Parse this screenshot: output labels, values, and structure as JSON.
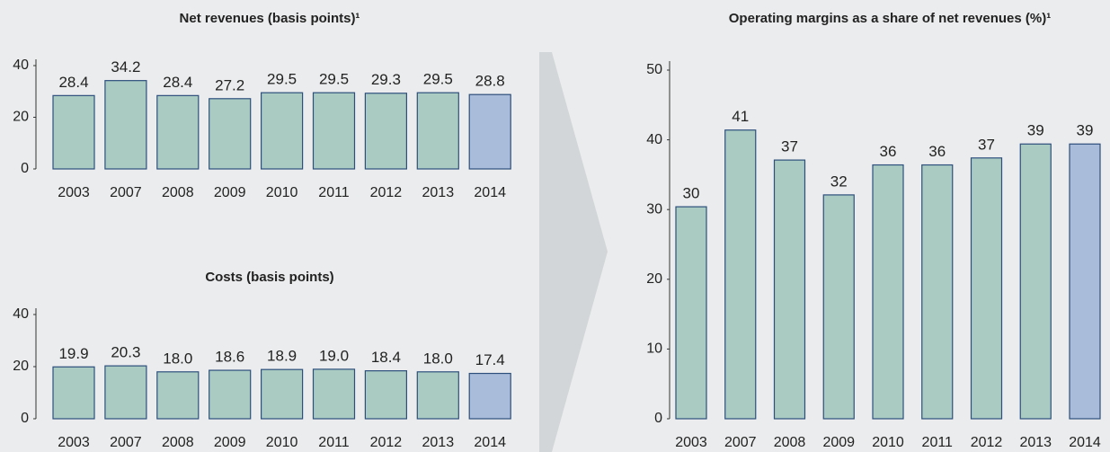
{
  "chart_data": [
    {
      "type": "bar",
      "title": "Net revenues (basis points)¹",
      "categories": [
        "2003",
        "2007",
        "2008",
        "2009",
        "2010",
        "2011",
        "2012",
        "2013",
        "2014"
      ],
      "values": [
        28.4,
        34.2,
        28.4,
        27.2,
        29.5,
        29.5,
        29.3,
        29.5,
        28.8
      ],
      "colors": [
        "#a9cbc2",
        "#a9cbc2",
        "#a9cbc2",
        "#a9cbc2",
        "#a9cbc2",
        "#a9cbc2",
        "#a9cbc2",
        "#a9cbc2",
        "#a9bcd9"
      ],
      "ylim": [
        0,
        40
      ],
      "yticks": [
        0,
        20,
        40
      ]
    },
    {
      "type": "bar",
      "title": "Costs (basis points)",
      "categories": [
        "2003",
        "2007",
        "2008",
        "2009",
        "2010",
        "2011",
        "2012",
        "2013",
        "2014"
      ],
      "values": [
        19.9,
        20.3,
        18,
        18.6,
        18.9,
        19,
        18.4,
        18,
        17.4
      ],
      "value_labels": [
        "19.9",
        "20.3",
        "18.0",
        "18.6",
        "18.9",
        "19.0",
        "18.4",
        "18.0",
        "17.4"
      ],
      "colors": [
        "#a9cbc2",
        "#a9cbc2",
        "#a9cbc2",
        "#a9cbc2",
        "#a9cbc2",
        "#a9cbc2",
        "#a9cbc2",
        "#a9cbc2",
        "#a9bcd9"
      ],
      "ylim": [
        0,
        40
      ],
      "yticks": [
        0,
        20,
        40
      ]
    },
    {
      "type": "bar",
      "title": "Operating margins as a share of net revenues (%)¹",
      "categories": [
        "2003",
        "2007",
        "2008",
        "2009",
        "2010",
        "2011",
        "2012",
        "2013",
        "2014"
      ],
      "values": [
        30.4,
        41.4,
        37.1,
        32.1,
        36.4,
        36.4,
        37.4,
        39.4,
        39.4
      ],
      "value_labels": [
        "30",
        "41",
        "37",
        "32",
        "36",
        "36",
        "37",
        "39",
        "39"
      ],
      "colors": [
        "#a9cbc2",
        "#a9cbc2",
        "#a9cbc2",
        "#a9cbc2",
        "#a9cbc2",
        "#a9cbc2",
        "#a9cbc2",
        "#a9cbc2",
        "#a9bcd9"
      ],
      "ylim": [
        0,
        50
      ],
      "yticks": [
        0,
        10,
        20,
        30,
        40,
        50
      ]
    }
  ]
}
